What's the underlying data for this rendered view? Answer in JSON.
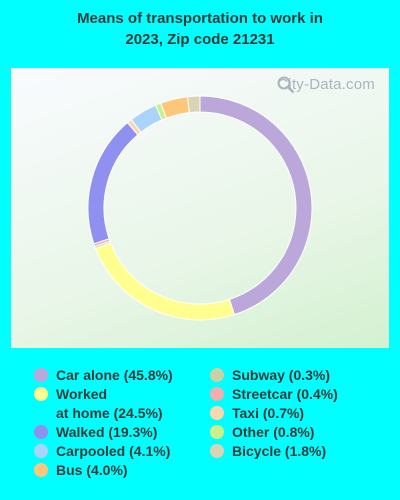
{
  "title_line1": "Means of transportation to work in",
  "title_line2": "2023, Zip code 21231",
  "watermark": "City-Data.com",
  "chart_data": {
    "type": "pie",
    "title": "Means of transportation to work in 2023, Zip code 21231",
    "donut": true,
    "slices": [
      {
        "label": "Car alone",
        "value": 45.8,
        "color": "#bba7da"
      },
      {
        "label": "Worked at home",
        "value": 24.5,
        "color": "#ffff8f"
      },
      {
        "label": "Subway",
        "value": 0.3,
        "color": "#c8d2a6"
      },
      {
        "label": "Streetcar",
        "value": 0.4,
        "color": "#f2aeae"
      },
      {
        "label": "Walked",
        "value": 19.3,
        "color": "#9090f0"
      },
      {
        "label": "Taxi",
        "value": 0.7,
        "color": "#fad7ac"
      },
      {
        "label": "Carpooled",
        "value": 4.1,
        "color": "#aad4f9"
      },
      {
        "label": "Other",
        "value": 0.8,
        "color": "#ccef88"
      },
      {
        "label": "Bus",
        "value": 4.0,
        "color": "#fdc77b"
      },
      {
        "label": "Bicycle",
        "value": 1.8,
        "color": "#d9d4b4"
      }
    ]
  },
  "legend": {
    "col1": [
      {
        "text": "Car alone (45.8%)",
        "color": "#bba7da"
      },
      {
        "text": "Worked",
        "text2": "at home (24.5%)",
        "color": "#ffff8f"
      },
      {
        "text": "Walked (19.3%)",
        "color": "#9090f0"
      },
      {
        "text": "Carpooled (4.1%)",
        "color": "#aad4f9"
      },
      {
        "text": "Bus (4.0%)",
        "color": "#fdc77b"
      }
    ],
    "col2": [
      {
        "text": "Subway (0.3%)",
        "color": "#c8d2a6"
      },
      {
        "text": "Streetcar (0.4%)",
        "color": "#f2aeae"
      },
      {
        "text": "Taxi (0.7%)",
        "color": "#fad7ac"
      },
      {
        "text": "Other (0.8%)",
        "color": "#ccef88"
      },
      {
        "text": "Bicycle (1.8%)",
        "color": "#d9d4b4"
      }
    ]
  }
}
